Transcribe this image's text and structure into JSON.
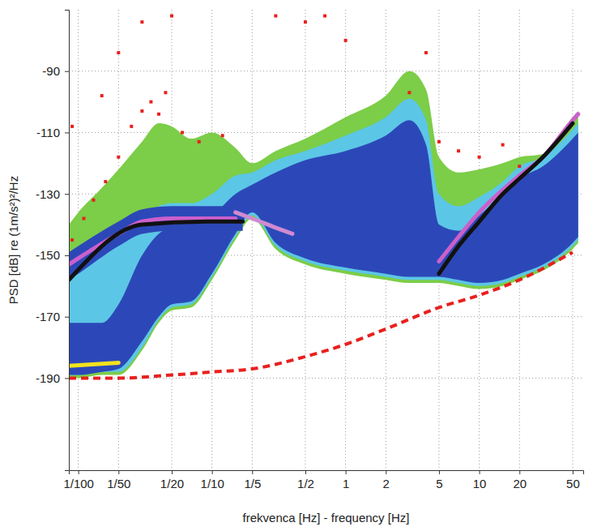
{
  "chart_data": {
    "type": "line",
    "xlabel": "frekvenca [Hz] - frequency [Hz]",
    "ylabel": "PSD [dB] re (1m/s²)²/Hz",
    "log": "x",
    "grid": true,
    "xlim": [
      0.0085,
      60
    ],
    "ylim": [
      -220,
      -70
    ],
    "xticks": [
      {
        "value": 0.01,
        "label": "1/100"
      },
      {
        "value": 0.02,
        "label": "1/50"
      },
      {
        "value": 0.05,
        "label": "1/20"
      },
      {
        "value": 0.1,
        "label": "1/10"
      },
      {
        "value": 0.2,
        "label": "1/5"
      },
      {
        "value": 0.5,
        "label": "1/2"
      },
      1,
      2,
      5,
      10,
      20,
      50
    ],
    "yticks": [
      -190,
      -170,
      -150,
      -130,
      -110,
      -90
    ],
    "series": [
      {
        "type": "area",
        "color": "#7ccd48",
        "x": [
          0.0085,
          0.01,
          0.015,
          0.02,
          0.03,
          0.04,
          0.05,
          0.07,
          0.1,
          0.15,
          0.2,
          0.3,
          0.5,
          1,
          2,
          3,
          4,
          5,
          7,
          10,
          15,
          20,
          30,
          50,
          55
        ],
        "values": [
          -140,
          -136,
          -128,
          -122,
          -113,
          -107,
          -108,
          -112,
          -110,
          -115,
          -120,
          -116,
          -112,
          -105,
          -98,
          -90,
          -96,
          -118,
          -123,
          -122,
          -120,
          -118,
          -117,
          -105,
          -103
        ],
        "lower": [
          -190,
          -190,
          -189,
          -189,
          -181,
          -172,
          -168,
          -167,
          -158,
          -145,
          -138,
          -148,
          -153,
          -156,
          -158,
          -159,
          -159,
          -159,
          -160,
          -161,
          -160,
          -158,
          -155,
          -148,
          -146
        ]
      },
      {
        "type": "area",
        "color": "#5cc6e6",
        "x": [
          0.0085,
          0.01,
          0.015,
          0.02,
          0.03,
          0.04,
          0.05,
          0.07,
          0.1,
          0.15,
          0.2,
          0.3,
          0.5,
          1,
          2,
          3,
          4,
          5,
          7,
          10,
          15,
          20,
          30,
          50,
          55
        ],
        "values": [
          -158,
          -155,
          -148,
          -143,
          -137,
          -134,
          -133,
          -133,
          -130,
          -124,
          -123,
          -119,
          -116,
          -111,
          -105,
          -99,
          -106,
          -130,
          -134,
          -131,
          -126,
          -121,
          -118,
          -109,
          -107
        ],
        "lower": [
          -189,
          -189,
          -188,
          -188,
          -180,
          -171,
          -167,
          -166,
          -157,
          -144,
          -137,
          -147,
          -152,
          -155,
          -157,
          -158,
          -158,
          -158,
          -159,
          -160,
          -159,
          -157,
          -154,
          -147,
          -145
        ]
      },
      {
        "type": "area",
        "color": "#2c48b8",
        "x": [
          0.0085,
          0.01,
          0.015,
          0.02,
          0.03,
          0.04,
          0.05,
          0.07,
          0.1,
          0.15,
          0.2,
          0.3,
          0.5,
          1,
          2,
          3,
          4,
          5,
          7,
          10,
          15,
          20,
          30,
          50,
          55
        ],
        "values": [
          -172,
          -172,
          -172,
          -166,
          -150,
          -143,
          -141,
          -139,
          -137,
          -130,
          -127,
          -123,
          -119,
          -116,
          -111,
          -106,
          -114,
          -140,
          -142,
          -137,
          -130,
          -125,
          -121,
          -112,
          -110
        ],
        "lower": [
          -189,
          -189,
          -188,
          -187,
          -178,
          -170,
          -166,
          -165,
          -156,
          -143,
          -136,
          -146,
          -151,
          -154,
          -156,
          -157,
          -157,
          -157,
          -158,
          -159,
          -158,
          -156,
          -153,
          -146,
          -144
        ]
      },
      {
        "type": "area",
        "color": "#2c48b8",
        "x": [
          0.0085,
          0.01,
          0.02,
          0.03,
          0.05,
          0.1,
          0.17
        ],
        "values": [
          -149,
          -147,
          -139,
          -135,
          -134,
          -134,
          -134
        ],
        "lower": [
          -158,
          -156,
          -147,
          -143,
          -142,
          -142,
          -142
        ]
      },
      {
        "type": "scatter",
        "color": "#e8201e",
        "marker": "square",
        "x": [
          0.009,
          0.011,
          0.013,
          0.016,
          0.02,
          0.025,
          0.03,
          0.035,
          0.04,
          0.045,
          0.06,
          0.08,
          0.12,
          0.02,
          0.03,
          0.05,
          0.3,
          0.5,
          0.7,
          1,
          3,
          5,
          7,
          10,
          15,
          20,
          4,
          0.015,
          0.009
        ],
        "values": [
          -145,
          -138,
          -132,
          -126,
          -118,
          -108,
          -103,
          -100,
          -104,
          -97,
          -110,
          -113,
          -111,
          -84,
          -74,
          -72,
          -72,
          -74,
          -72,
          -80,
          -97,
          -113,
          -116,
          -118,
          -114,
          -121,
          -84,
          -98,
          -108
        ]
      },
      {
        "type": "line",
        "color": "#cc5fcc",
        "line_style": "solid",
        "x": [
          0.0085,
          0.01,
          0.02,
          0.03,
          0.05,
          0.1,
          0.15
        ],
        "values": [
          -153,
          -151,
          -143,
          -139,
          -138,
          -138,
          -138
        ]
      },
      {
        "type": "line",
        "color": "#d08ad0",
        "line_style": "solid",
        "x": [
          0.15,
          0.2,
          0.3,
          0.4
        ],
        "values": [
          -136,
          -138,
          -141,
          -143
        ]
      },
      {
        "type": "line",
        "color": "#cc5fcc",
        "line_style": "solid",
        "x": [
          5,
          7,
          10,
          20,
          30,
          50,
          55
        ],
        "values": [
          -152,
          -144,
          -136,
          -124,
          -118,
          -106,
          -104
        ]
      },
      {
        "type": "line",
        "color": "#111111",
        "line_style": "solid",
        "x": [
          0.0085,
          0.03,
          0.1,
          0.17
        ],
        "values": [
          -158,
          -140,
          -139,
          -139
        ]
      },
      {
        "type": "line",
        "color": "#111111",
        "line_style": "solid",
        "x": [
          5,
          7,
          10,
          15,
          20,
          30,
          50
        ],
        "values": [
          -156,
          -147,
          -139,
          -130,
          -125,
          -118,
          -107
        ]
      },
      {
        "type": "line",
        "color": "#f2e21e",
        "line_style": "solid",
        "x": [
          0.0085,
          0.02
        ],
        "values": [
          -186,
          -185
        ]
      },
      {
        "type": "line",
        "color": "#e8201e",
        "line_style": "dashed",
        "x": [
          0.0085,
          0.01,
          0.02,
          0.05,
          0.1,
          0.2,
          0.5,
          1,
          2,
          5,
          10,
          20,
          50
        ],
        "values": [
          -190,
          -190,
          -190,
          -189,
          -188,
          -187,
          -183,
          -179,
          -174,
          -167,
          -163,
          -158,
          -149
        ]
      }
    ]
  }
}
